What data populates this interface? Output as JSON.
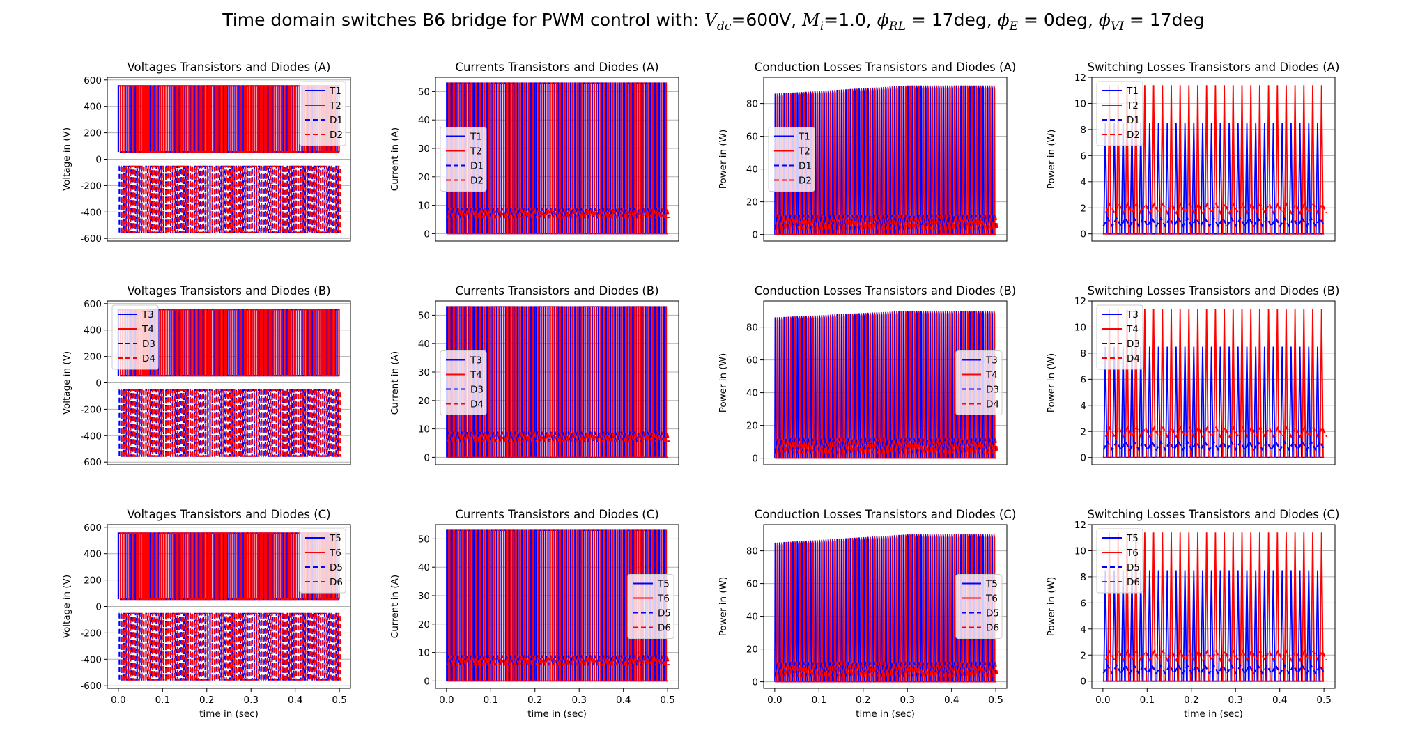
{
  "figure": {
    "title_prefix": "Time domain switches B6 bridge for PWM control with: ",
    "vdc_value": "=600V",
    "mi_value": "=1.0",
    "phi_rl_value": " = 17",
    "phi_e_value": " = 0",
    "phi_vi_value": " = 17",
    "deg_unit": "deg",
    "sep": ", "
  },
  "colors": {
    "transistor": "#0000ff",
    "diode_alt": "#ff0000",
    "grid": "#b0b0b0"
  },
  "chart_data": [
    {
      "type": "line",
      "row": 0,
      "col": 0,
      "title": "Voltages Transistors and Diodes (A)",
      "ylabel": "Voltage in (V)",
      "xlabel": "",
      "ylim": [
        -620,
        620
      ],
      "yticks": [
        -600,
        -400,
        -200,
        0,
        200,
        400,
        600
      ],
      "xlim": [
        -0.025,
        0.525
      ],
      "xticks": [],
      "legend_position": "upper right",
      "grid": true,
      "series": [
        {
          "name": "T1",
          "style": "solid",
          "color": "#0000ff"
        },
        {
          "name": "T2",
          "style": "solid",
          "color": "#ff0000"
        },
        {
          "name": "D1",
          "style": "dashed",
          "color": "#0000ff"
        },
        {
          "name": "D2",
          "style": "dashed",
          "color": "#ff0000"
        }
      ],
      "signal": {
        "kind": "voltage",
        "hi": 555,
        "lo": 55,
        "periods": 50
      }
    },
    {
      "type": "line",
      "row": 0,
      "col": 1,
      "title": "Currents Transistors and Diodes (A)",
      "ylabel": "Current in (A)",
      "xlabel": "",
      "ylim": [
        -2.6,
        55
      ],
      "yticks": [
        0,
        10,
        20,
        30,
        40,
        50
      ],
      "xlim": [
        -0.025,
        0.525
      ],
      "xticks": [],
      "legend_position": "center left",
      "grid": true,
      "series": [
        {
          "name": "T1",
          "style": "solid",
          "color": "#0000ff"
        },
        {
          "name": "T2",
          "style": "solid",
          "color": "#ff0000"
        },
        {
          "name": "D1",
          "style": "dashed",
          "color": "#0000ff"
        },
        {
          "name": "D2",
          "style": "dashed",
          "color": "#ff0000"
        }
      ],
      "signal": {
        "kind": "current",
        "peak": 53,
        "diode_peak": 7,
        "periods": 50
      }
    },
    {
      "type": "line",
      "row": 0,
      "col": 2,
      "title": "Conduction Losses Transistors and Diodes (A)",
      "ylabel": "Power in (W)",
      "xlabel": "",
      "ylim": [
        -4,
        96
      ],
      "yticks": [
        0,
        20,
        40,
        60,
        80
      ],
      "xlim": [
        -0.025,
        0.525
      ],
      "xticks": [],
      "legend_position": "center left",
      "grid": true,
      "series": [
        {
          "name": "T1",
          "style": "solid",
          "color": "#0000ff"
        },
        {
          "name": "T2",
          "style": "solid",
          "color": "#ff0000"
        },
        {
          "name": "D1",
          "style": "dashed",
          "color": "#0000ff"
        },
        {
          "name": "D2",
          "style": "dashed",
          "color": "#ff0000"
        }
      ],
      "signal": {
        "kind": "conduction",
        "start": 86,
        "end": 91,
        "diode_peak": 12,
        "periods": 50
      }
    },
    {
      "type": "line",
      "row": 0,
      "col": 3,
      "title": "Switching Losses Transistors and Diodes (A)",
      "ylabel": "Power in (W)",
      "xlabel": "",
      "ylim": [
        -0.55,
        12
      ],
      "yticks": [
        0,
        2,
        4,
        6,
        8,
        10,
        12
      ],
      "xlim": [
        -0.025,
        0.525
      ],
      "xticks": [],
      "legend_position": "upper left",
      "grid": true,
      "series": [
        {
          "name": "T1",
          "style": "solid",
          "color": "#0000ff"
        },
        {
          "name": "T2",
          "style": "solid",
          "color": "#ff0000"
        },
        {
          "name": "D1",
          "style": "dashed",
          "color": "#0000ff"
        },
        {
          "name": "D2",
          "style": "dashed",
          "color": "#ff0000"
        }
      ],
      "signal": {
        "kind": "switching",
        "t_peak_a": 8.5,
        "t_peak_b": 11.4,
        "d_peak_a": 1.2,
        "d_peak_b": 2.3,
        "periods": 25
      }
    },
    {
      "type": "line",
      "row": 1,
      "col": 0,
      "title": "Voltages Transistors and Diodes (B)",
      "ylabel": "Voltage in (V)",
      "xlabel": "",
      "ylim": [
        -620,
        620
      ],
      "yticks": [
        -600,
        -400,
        -200,
        0,
        200,
        400,
        600
      ],
      "xlim": [
        -0.025,
        0.525
      ],
      "xticks": [],
      "legend_position": "upper left",
      "grid": true,
      "series": [
        {
          "name": "T3",
          "style": "solid",
          "color": "#0000ff"
        },
        {
          "name": "T4",
          "style": "solid",
          "color": "#ff0000"
        },
        {
          "name": "D3",
          "style": "dashed",
          "color": "#0000ff"
        },
        {
          "name": "D4",
          "style": "dashed",
          "color": "#ff0000"
        }
      ],
      "signal": {
        "kind": "voltage",
        "hi": 555,
        "lo": 55,
        "periods": 50
      }
    },
    {
      "type": "line",
      "row": 1,
      "col": 1,
      "title": "Currents Transistors and Diodes (B)",
      "ylabel": "Current in (A)",
      "xlabel": "",
      "ylim": [
        -2.6,
        55
      ],
      "yticks": [
        0,
        10,
        20,
        30,
        40,
        50
      ],
      "xlim": [
        -0.025,
        0.525
      ],
      "xticks": [],
      "legend_position": "center left",
      "grid": true,
      "series": [
        {
          "name": "T3",
          "style": "solid",
          "color": "#0000ff"
        },
        {
          "name": "T4",
          "style": "solid",
          "color": "#ff0000"
        },
        {
          "name": "D3",
          "style": "dashed",
          "color": "#0000ff"
        },
        {
          "name": "D4",
          "style": "dashed",
          "color": "#ff0000"
        }
      ],
      "signal": {
        "kind": "current",
        "peak": 53,
        "diode_peak": 7,
        "periods": 50
      }
    },
    {
      "type": "line",
      "row": 1,
      "col": 2,
      "title": "Conduction Losses Transistors and Diodes (B)",
      "ylabel": "Power in (W)",
      "xlabel": "",
      "ylim": [
        -4,
        96
      ],
      "yticks": [
        0,
        20,
        40,
        60,
        80
      ],
      "xlim": [
        -0.025,
        0.525
      ],
      "xticks": [],
      "legend_position": "center right",
      "grid": true,
      "series": [
        {
          "name": "T3",
          "style": "solid",
          "color": "#0000ff"
        },
        {
          "name": "T4",
          "style": "solid",
          "color": "#ff0000"
        },
        {
          "name": "D3",
          "style": "dashed",
          "color": "#0000ff"
        },
        {
          "name": "D4",
          "style": "dashed",
          "color": "#ff0000"
        }
      ],
      "signal": {
        "kind": "conduction",
        "start": 86,
        "end": 90,
        "diode_peak": 12,
        "periods": 50
      }
    },
    {
      "type": "line",
      "row": 1,
      "col": 3,
      "title": "Switching Losses Transistors and Diodes (B)",
      "ylabel": "Power in (W)",
      "xlabel": "",
      "ylim": [
        -0.55,
        12
      ],
      "yticks": [
        0,
        2,
        4,
        6,
        8,
        10,
        12
      ],
      "xlim": [
        -0.025,
        0.525
      ],
      "xticks": [],
      "legend_position": "upper left",
      "grid": true,
      "series": [
        {
          "name": "T3",
          "style": "solid",
          "color": "#0000ff"
        },
        {
          "name": "T4",
          "style": "solid",
          "color": "#ff0000"
        },
        {
          "name": "D3",
          "style": "dashed",
          "color": "#0000ff"
        },
        {
          "name": "D4",
          "style": "dashed",
          "color": "#ff0000"
        }
      ],
      "signal": {
        "kind": "switching",
        "t_peak_a": 8.5,
        "t_peak_b": 11.4,
        "d_peak_a": 1.2,
        "d_peak_b": 2.3,
        "periods": 25
      }
    },
    {
      "type": "line",
      "row": 2,
      "col": 0,
      "title": "Voltages Transistors and Diodes (C)",
      "ylabel": "Voltage in (V)",
      "xlabel": "time in (sec)",
      "ylim": [
        -620,
        620
      ],
      "yticks": [
        -600,
        -400,
        -200,
        0,
        200,
        400,
        600
      ],
      "xlim": [
        -0.025,
        0.525
      ],
      "xticks": [
        0.0,
        0.1,
        0.2,
        0.3,
        0.4,
        0.5
      ],
      "legend_position": "upper right",
      "grid": true,
      "series": [
        {
          "name": "T5",
          "style": "solid",
          "color": "#0000ff"
        },
        {
          "name": "T6",
          "style": "solid",
          "color": "#ff0000"
        },
        {
          "name": "D5",
          "style": "dashed",
          "color": "#0000ff"
        },
        {
          "name": "D6",
          "style": "dashed",
          "color": "#ff0000"
        }
      ],
      "signal": {
        "kind": "voltage",
        "hi": 555,
        "lo": 55,
        "periods": 50
      }
    },
    {
      "type": "line",
      "row": 2,
      "col": 1,
      "title": "Currents Transistors and Diodes (C)",
      "ylabel": "Current in (A)",
      "xlabel": "time in (sec)",
      "ylim": [
        -2.6,
        55
      ],
      "yticks": [
        0,
        10,
        20,
        30,
        40,
        50
      ],
      "xlim": [
        -0.025,
        0.525
      ],
      "xticks": [
        0.0,
        0.1,
        0.2,
        0.3,
        0.4,
        0.5
      ],
      "legend_position": "center right",
      "grid": true,
      "series": [
        {
          "name": "T5",
          "style": "solid",
          "color": "#0000ff"
        },
        {
          "name": "T6",
          "style": "solid",
          "color": "#ff0000"
        },
        {
          "name": "D5",
          "style": "dashed",
          "color": "#0000ff"
        },
        {
          "name": "D6",
          "style": "dashed",
          "color": "#ff0000"
        }
      ],
      "signal": {
        "kind": "current",
        "peak": 53,
        "diode_peak": 7,
        "periods": 50
      }
    },
    {
      "type": "line",
      "row": 2,
      "col": 2,
      "title": "Conduction Losses Transistors and Diodes (C)",
      "ylabel": "Power in (W)",
      "xlabel": "time in (sec)",
      "ylim": [
        -4,
        96
      ],
      "yticks": [
        0,
        20,
        40,
        60,
        80
      ],
      "xlim": [
        -0.025,
        0.525
      ],
      "xticks": [
        0.0,
        0.1,
        0.2,
        0.3,
        0.4,
        0.5
      ],
      "legend_position": "center right",
      "grid": true,
      "series": [
        {
          "name": "T5",
          "style": "solid",
          "color": "#0000ff"
        },
        {
          "name": "T6",
          "style": "solid",
          "color": "#ff0000"
        },
        {
          "name": "D5",
          "style": "dashed",
          "color": "#0000ff"
        },
        {
          "name": "D6",
          "style": "dashed",
          "color": "#ff0000"
        }
      ],
      "signal": {
        "kind": "conduction",
        "start": 85,
        "end": 90,
        "diode_peak": 12,
        "periods": 50
      }
    },
    {
      "type": "line",
      "row": 2,
      "col": 3,
      "title": "Switching Losses Transistors and Diodes (C)",
      "ylabel": "Power in (W)",
      "xlabel": "time in (sec)",
      "ylim": [
        -0.55,
        12
      ],
      "yticks": [
        0,
        2,
        4,
        6,
        8,
        10,
        12
      ],
      "xlim": [
        -0.025,
        0.525
      ],
      "xticks": [
        0.0,
        0.1,
        0.2,
        0.3,
        0.4,
        0.5
      ],
      "legend_position": "upper left",
      "grid": true,
      "series": [
        {
          "name": "T5",
          "style": "solid",
          "color": "#0000ff"
        },
        {
          "name": "T6",
          "style": "solid",
          "color": "#ff0000"
        },
        {
          "name": "D5",
          "style": "dashed",
          "color": "#0000ff"
        },
        {
          "name": "D6",
          "style": "dashed",
          "color": "#ff0000"
        }
      ],
      "signal": {
        "kind": "switching",
        "t_peak_a": 8.5,
        "t_peak_b": 11.4,
        "d_peak_a": 1.2,
        "d_peak_b": 2.3,
        "periods": 25
      }
    }
  ]
}
